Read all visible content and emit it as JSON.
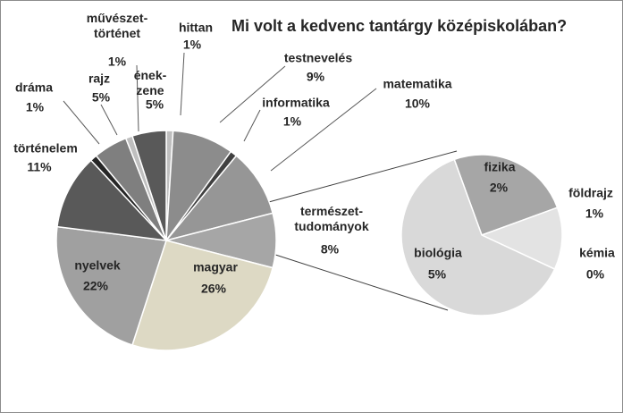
{
  "chart_data": {
    "type": "pie-of-pie",
    "title": "Mi volt a kedvenc tantárgy középiskolában?",
    "main": {
      "categories": [
        "hittan",
        "testnevelés",
        "informatika",
        "matematika",
        "természet-\ntudományok",
        "magyar",
        "nyelvek",
        "történelem",
        "dráma",
        "rajz",
        "művészet-\ntörténet",
        "ének-\nzene"
      ],
      "values": [
        1,
        9,
        1,
        10,
        8,
        26,
        22,
        11,
        1,
        5,
        1,
        5
      ],
      "value_labels": [
        "1%",
        "9%",
        "1%",
        "10%",
        "8%",
        "26%",
        "22%",
        "11%",
        "1%",
        "5%",
        "1%",
        "5%"
      ],
      "colors": [
        "#bfbfbf",
        "#8c8c8c",
        "#404040",
        "#969696",
        "#a6a6a6",
        "#ddd9c4",
        "#a0a0a0",
        "#595959",
        "#262626",
        "#7f7f7f",
        "#bfbfbf",
        "#595959"
      ]
    },
    "secondary": {
      "categories": [
        "fizika",
        "földrajz",
        "kémia",
        "biológia"
      ],
      "values": [
        2,
        1,
        0,
        5
      ],
      "value_labels": [
        "2%",
        "1%",
        "0%",
        "5%"
      ],
      "colors": [
        "#a6a6a6",
        "#e3e3e3",
        "#cccccc",
        "#d9d9d9"
      ]
    }
  }
}
